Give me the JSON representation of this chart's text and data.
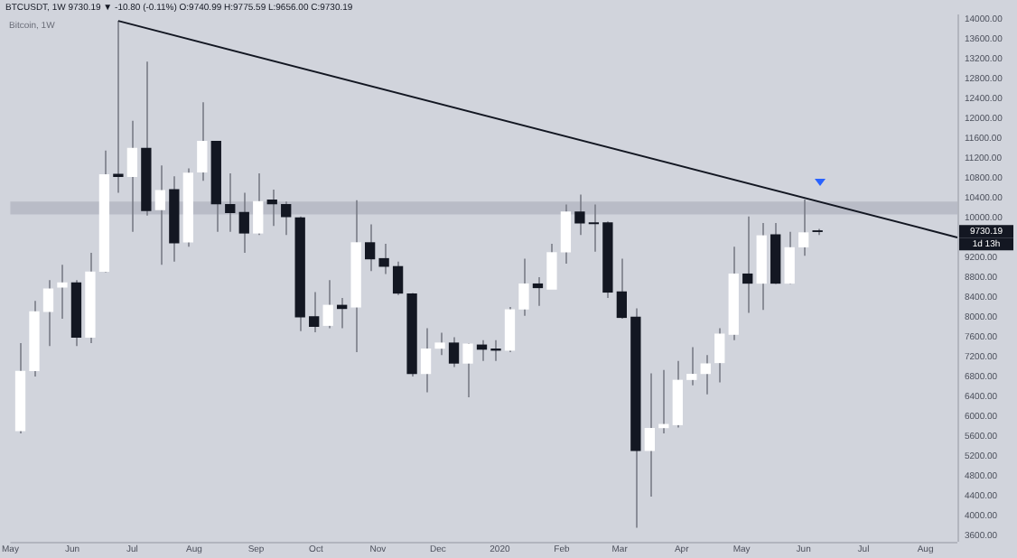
{
  "chart_data": {
    "type": "candlestick",
    "title": "BTCUSDT, 1W 9730.19 ▼ -10.80 (-0.11%) O:9740.99 H:9775.59 L:9656.00 C:9730.19",
    "subtitle": "Bitcoin, 1W",
    "x": [
      "2019-05-06",
      "2019-05-13",
      "2019-05-20",
      "2019-05-27",
      "2019-06-03",
      "2019-06-10",
      "2019-06-17",
      "2019-06-24",
      "2019-07-01",
      "2019-07-08",
      "2019-07-15",
      "2019-07-22",
      "2019-07-29",
      "2019-08-05",
      "2019-08-12",
      "2019-08-19",
      "2019-08-26",
      "2019-09-02",
      "2019-09-09",
      "2019-09-16",
      "2019-09-23",
      "2019-09-30",
      "2019-10-07",
      "2019-10-14",
      "2019-10-21",
      "2019-10-28",
      "2019-11-04",
      "2019-11-11",
      "2019-11-18",
      "2019-11-25",
      "2019-12-02",
      "2019-12-09",
      "2019-12-16",
      "2019-12-23",
      "2019-12-30",
      "2020-01-06",
      "2020-01-13",
      "2020-01-20",
      "2020-01-27",
      "2020-02-03",
      "2020-02-10",
      "2020-02-17",
      "2020-02-24",
      "2020-03-02",
      "2020-03-09",
      "2020-03-16",
      "2020-03-23",
      "2020-03-30",
      "2020-04-06",
      "2020-04-13",
      "2020-04-20",
      "2020-04-27",
      "2020-05-04",
      "2020-05-11",
      "2020-05-18",
      "2020-05-25",
      "2020-06-01",
      "2020-06-08"
    ],
    "ohlc": [
      [
        5720,
        7480,
        5660,
        6910
      ],
      [
        6930,
        8330,
        6810,
        8110
      ],
      [
        8120,
        8750,
        7420,
        8570
      ],
      [
        8610,
        9060,
        7970,
        8690
      ],
      [
        8690,
        8750,
        7420,
        7600
      ],
      [
        7600,
        9300,
        7480,
        8910
      ],
      [
        8930,
        11360,
        8910,
        10870
      ],
      [
        10880,
        13970,
        10510,
        10840
      ],
      [
        10840,
        11960,
        9720,
        11400
      ],
      [
        11400,
        13150,
        10050,
        10150
      ],
      [
        10170,
        11060,
        9060,
        10550
      ],
      [
        10570,
        10840,
        9120,
        9500
      ],
      [
        9520,
        11000,
        9420,
        10900
      ],
      [
        10930,
        12330,
        10750,
        11540
      ],
      [
        11540,
        11540,
        9720,
        10290
      ],
      [
        10270,
        10900,
        9720,
        10110
      ],
      [
        10110,
        10510,
        9300,
        9700
      ],
      [
        9700,
        10900,
        9660,
        10330
      ],
      [
        10360,
        10570,
        9840,
        10290
      ],
      [
        10270,
        10330,
        9660,
        10030
      ],
      [
        10000,
        10030,
        7720,
        8010
      ],
      [
        8010,
        8510,
        7700,
        7820
      ],
      [
        7840,
        8750,
        7780,
        8240
      ],
      [
        8240,
        8390,
        7780,
        8180
      ],
      [
        8210,
        10360,
        7300,
        9500
      ],
      [
        9500,
        9870,
        8930,
        9180
      ],
      [
        9180,
        9480,
        8870,
        9030
      ],
      [
        9020,
        9120,
        8450,
        8490
      ],
      [
        8470,
        8490,
        6810,
        6870
      ],
      [
        6870,
        7780,
        6490,
        7360
      ],
      [
        7380,
        7690,
        7240,
        7480
      ],
      [
        7480,
        7600,
        7000,
        7080
      ],
      [
        7080,
        7480,
        6390,
        7460
      ],
      [
        7440,
        7540,
        7120,
        7360
      ],
      [
        7360,
        7540,
        7120,
        7340
      ],
      [
        7340,
        8210,
        7300,
        8150
      ],
      [
        8170,
        9180,
        8030,
        8670
      ],
      [
        8670,
        8810,
        8230,
        8600
      ],
      [
        8570,
        9480,
        8570,
        9300
      ],
      [
        9320,
        10270,
        9080,
        10120
      ],
      [
        10120,
        10470,
        9660,
        9900
      ],
      [
        9900,
        10270,
        9320,
        9890
      ],
      [
        9900,
        9930,
        8390,
        8510
      ],
      [
        8510,
        9180,
        7970,
        8000
      ],
      [
        8000,
        8180,
        3760,
        5320
      ],
      [
        5320,
        6870,
        4390,
        5760
      ],
      [
        5780,
        6940,
        5660,
        5840
      ],
      [
        5840,
        7120,
        5780,
        6730
      ],
      [
        6750,
        7400,
        6630,
        6850
      ],
      [
        6870,
        7240,
        6450,
        7060
      ],
      [
        7090,
        7780,
        6690,
        7660
      ],
      [
        7660,
        9420,
        7540,
        8870
      ],
      [
        8870,
        10030,
        8090,
        8690
      ],
      [
        8690,
        9900,
        8150,
        9640
      ],
      [
        9660,
        9900,
        8670,
        8690
      ],
      [
        8690,
        9720,
        8670,
        9400
      ],
      [
        9420,
        10370,
        9240,
        9700
      ],
      [
        9740,
        9780,
        9660,
        9730
      ]
    ],
    "colors": [
      "#ffffff",
      "#ffffff",
      "#ffffff",
      "#ffffff",
      "#131722",
      "#ffffff",
      "#ffffff",
      "#131722",
      "#ffffff",
      "#131722",
      "#ffffff",
      "#131722",
      "#ffffff",
      "#ffffff",
      "#131722",
      "#131722",
      "#131722",
      "#ffffff",
      "#131722",
      "#131722",
      "#131722",
      "#131722",
      "#ffffff",
      "#131722",
      "#ffffff",
      "#131722",
      "#131722",
      "#131722",
      "#131722",
      "#ffffff",
      "#ffffff",
      "#131722",
      "#ffffff",
      "#131722",
      "#131722",
      "#ffffff",
      "#ffffff",
      "#131722",
      "#ffffff",
      "#ffffff",
      "#131722",
      "#131722",
      "#131722",
      "#131722",
      "#131722",
      "#ffffff",
      "#ffffff",
      "#ffffff",
      "#ffffff",
      "#ffffff",
      "#ffffff",
      "#ffffff",
      "#131722",
      "#ffffff",
      "#131722",
      "#ffffff",
      "#ffffff",
      "#131722"
    ],
    "series": [
      {
        "type": "line",
        "color": "#131722",
        "x": [
          "2019-06-24",
          "2020-08-17"
        ],
        "values": [
          13970,
          9610
        ]
      }
    ],
    "bands": [
      {
        "axis": "y",
        "from": 10070,
        "to": 10330,
        "color": "#b9bcc7"
      }
    ],
    "annotations": [
      "9730.19",
      "1d 13h"
    ],
    "xlim": [
      "2019-05-01",
      "2020-08-17"
    ],
    "xticks": [
      {
        "value": "2019-05-01",
        "label": "May"
      },
      {
        "value": "2019-06-01",
        "label": "Jun"
      },
      {
        "value": "2019-07-01",
        "label": "Jul"
      },
      {
        "value": "2019-08-01",
        "label": "Aug"
      },
      {
        "value": "2019-09-01",
        "label": "Sep"
      },
      {
        "value": "2019-10-01",
        "label": "Oct"
      },
      {
        "value": "2019-11-01",
        "label": "Nov"
      },
      {
        "value": "2019-12-01",
        "label": "Dec"
      },
      {
        "value": "2020-01-01",
        "label": "2020"
      },
      {
        "value": "2020-02-01",
        "label": "Feb"
      },
      {
        "value": "2020-03-01",
        "label": "Mar"
      },
      {
        "value": "2020-04-01",
        "label": "Apr"
      },
      {
        "value": "2020-05-01",
        "label": "May"
      },
      {
        "value": "2020-06-01",
        "label": "Jun"
      },
      {
        "value": "2020-07-01",
        "label": "Jul"
      },
      {
        "value": "2020-08-01",
        "label": "Aug"
      }
    ],
    "ylim": [
      3480,
      14100
    ],
    "yticks": [
      {
        "value": 3600,
        "label": "3600.00"
      },
      {
        "value": 4000,
        "label": "4000.00"
      },
      {
        "value": 4400,
        "label": "4400.00"
      },
      {
        "value": 4800,
        "label": "4800.00"
      },
      {
        "value": 5200,
        "label": "5200.00"
      },
      {
        "value": 5600,
        "label": "5600.00"
      },
      {
        "value": 6000,
        "label": "6000.00"
      },
      {
        "value": 6400,
        "label": "6400.00"
      },
      {
        "value": 6800,
        "label": "6800.00"
      },
      {
        "value": 7200,
        "label": "7200.00"
      },
      {
        "value": 7600,
        "label": "7600.00"
      },
      {
        "value": 8000,
        "label": "8000.00"
      },
      {
        "value": 8400,
        "label": "8400.00"
      },
      {
        "value": 8800,
        "label": "8800.00"
      },
      {
        "value": 9200,
        "label": "9200.00"
      },
      {
        "value": 10000,
        "label": "10000.00"
      },
      {
        "value": 10400,
        "label": "10400.00"
      },
      {
        "value": 10800,
        "label": "10800.00"
      },
      {
        "value": 11200,
        "label": "11200.00"
      },
      {
        "value": 11600,
        "label": "11600.00"
      },
      {
        "value": 12000,
        "label": "12000.00"
      },
      {
        "value": 12400,
        "label": "12400.00"
      },
      {
        "value": 12800,
        "label": "12800.00"
      },
      {
        "value": 13200,
        "label": "13200.00"
      },
      {
        "value": 13600,
        "label": "13600.00"
      },
      {
        "value": 14000,
        "label": "14000.00"
      }
    ]
  }
}
